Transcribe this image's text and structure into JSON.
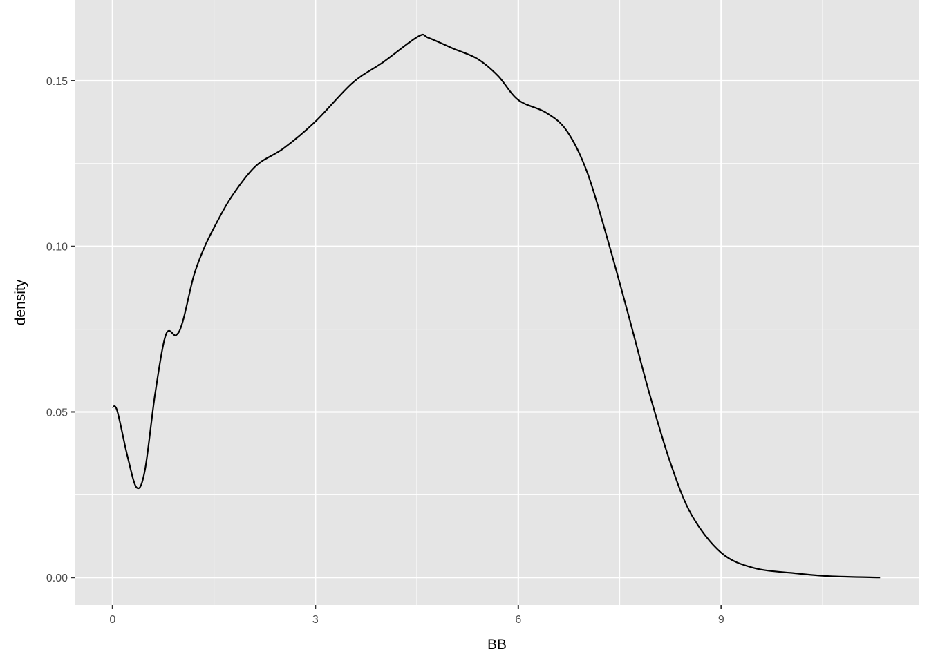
{
  "chart_data": {
    "type": "line",
    "title": "",
    "xlabel": "BB",
    "ylabel": "density",
    "xlim": [
      -0.56,
      11.93
    ],
    "ylim": [
      -0.0083,
      0.1744
    ],
    "x_ticks": [
      0,
      3,
      6,
      9
    ],
    "x_tick_labels": [
      "0",
      "3",
      "6",
      "9"
    ],
    "y_ticks": [
      0,
      0.05,
      0.1,
      0.15
    ],
    "y_tick_labels": [
      "0.00",
      "0.05",
      "0.10",
      "0.15"
    ],
    "grid": true,
    "colors": {
      "panel": "#e5e5e5",
      "grid": "#ffffff",
      "line": "#000000"
    },
    "series": [
      {
        "x": [
          0,
          0.07,
          0.22,
          0.36,
          0.48,
          0.63,
          0.79,
          0.94,
          1.04,
          1.2,
          1.35,
          1.5,
          1.76,
          2.12,
          2.53,
          3.0,
          3.55,
          4.0,
          4.52,
          4.67,
          5.03,
          5.39,
          5.7,
          6.0,
          6.41,
          6.72,
          7.02,
          7.33,
          7.64,
          7.94,
          8.25,
          8.56,
          9.0,
          9.48,
          10.09,
          10.6,
          11.35
        ],
        "y": [
          0.0515,
          0.0503,
          0.0367,
          0.0271,
          0.0325,
          0.0555,
          0.0734,
          0.0732,
          0.0774,
          0.091,
          0.0993,
          0.1056,
          0.115,
          0.1243,
          0.1296,
          0.1377,
          0.1494,
          0.1556,
          0.1634,
          0.163,
          0.1598,
          0.1567,
          0.1515,
          0.1442,
          0.1404,
          0.1348,
          0.1223,
          0.1014,
          0.0784,
          0.0555,
          0.0346,
          0.019,
          0.0075,
          0.0029,
          0.0013,
          0.0004,
          0.0
        ]
      }
    ]
  }
}
